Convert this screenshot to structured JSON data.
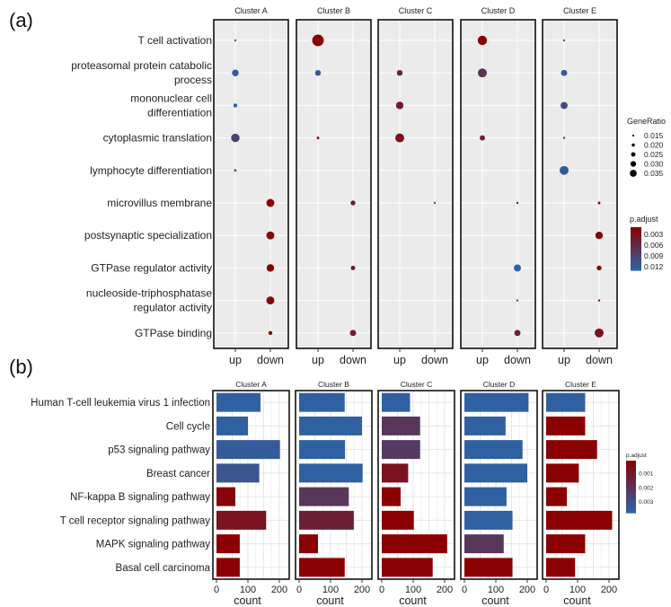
{
  "chart_data": [
    {
      "panel_label": "(a)",
      "type": "scatter",
      "title": "",
      "xlabel": "",
      "ylabel": "",
      "facets": [
        "Cluster A",
        "Cluster B",
        "Cluster C",
        "Cluster D",
        "Cluster E"
      ],
      "x_categories": [
        "up",
        "down"
      ],
      "terms": [
        [
          "T cell activation"
        ],
        [
          "proteasomal protein catabolic",
          "process"
        ],
        [
          "mononuclear cell",
          "differentiation"
        ],
        [
          "cytoplasmic translation"
        ],
        [
          "lymphocyte differentiation"
        ],
        [
          "microvillus membrane"
        ],
        [
          "postsynaptic specialization"
        ],
        [
          "GTPase regulator activity"
        ],
        [
          "nucleoside-triphosphatase",
          "regulator activity"
        ],
        [
          "GTPase binding"
        ]
      ],
      "points": [
        [
          0,
          0,
          0,
          0.012,
          0.013
        ],
        [
          0,
          1,
          0,
          0.022,
          0.012
        ],
        [
          0,
          2,
          0,
          0.016,
          0.013
        ],
        [
          0,
          3,
          0,
          0.026,
          0.009
        ],
        [
          0,
          4,
          0,
          0.013,
          0.013
        ],
        [
          0,
          5,
          1,
          0.025,
          0.001
        ],
        [
          0,
          6,
          1,
          0.025,
          0.002
        ],
        [
          0,
          7,
          1,
          0.024,
          0.001
        ],
        [
          0,
          8,
          1,
          0.025,
          0.002
        ],
        [
          0,
          9,
          1,
          0.016,
          0.001
        ],
        [
          1,
          0,
          0,
          0.033,
          0.001
        ],
        [
          1,
          1,
          0,
          0.02,
          0.012
        ],
        [
          1,
          3,
          0,
          0.013,
          0.002
        ],
        [
          1,
          5,
          1,
          0.018,
          0.004
        ],
        [
          1,
          7,
          1,
          0.017,
          0.004
        ],
        [
          1,
          9,
          1,
          0.021,
          0.004
        ],
        [
          2,
          1,
          0,
          0.02,
          0.005
        ],
        [
          2,
          2,
          0,
          0.024,
          0.004
        ],
        [
          2,
          3,
          0,
          0.027,
          0.003
        ],
        [
          2,
          5,
          1,
          0.012,
          0.013
        ],
        [
          3,
          0,
          0,
          0.028,
          0.001
        ],
        [
          3,
          1,
          0,
          0.027,
          0.007
        ],
        [
          3,
          3,
          0,
          0.019,
          0.005
        ],
        [
          3,
          5,
          1,
          0.012,
          0.004
        ],
        [
          3,
          7,
          1,
          0.023,
          0.013
        ],
        [
          3,
          8,
          1,
          0.012,
          0.012
        ],
        [
          3,
          9,
          1,
          0.021,
          0.005
        ],
        [
          4,
          0,
          0,
          0.012,
          0.013
        ],
        [
          4,
          1,
          0,
          0.021,
          0.012
        ],
        [
          4,
          2,
          0,
          0.023,
          0.01
        ],
        [
          4,
          3,
          0,
          0.012,
          0.009
        ],
        [
          4,
          4,
          0,
          0.027,
          0.012
        ],
        [
          4,
          5,
          1,
          0.013,
          0.002
        ],
        [
          4,
          6,
          1,
          0.024,
          0.002
        ],
        [
          4,
          7,
          1,
          0.018,
          0.002
        ],
        [
          4,
          8,
          1,
          0.012,
          0.002
        ],
        [
          4,
          9,
          1,
          0.027,
          0.003
        ]
      ],
      "legend_size": {
        "title": "GeneRatio",
        "values": [
          0.015,
          0.02,
          0.025,
          0.03,
          0.035
        ],
        "labels": [
          "0.015",
          "0.020",
          "0.025",
          "0.030",
          "0.035"
        ]
      },
      "legend_color": {
        "title": "p.adjust",
        "range": [
          0.001,
          0.013
        ],
        "labels": [
          "0.003",
          "0.006",
          "0.009",
          "0.012"
        ],
        "values": [
          0.003,
          0.006,
          0.009,
          0.012
        ]
      },
      "legend_position": "right",
      "colors": {
        "low": "#8b0000",
        "high": "#2c63a6"
      }
    },
    {
      "panel_label": "(b)",
      "type": "bar",
      "orientation": "horizontal",
      "title": "",
      "xlabel": "count",
      "ylabel": "",
      "facets": [
        "Cluster A",
        "Cluster B",
        "Cluster C",
        "Cluster D",
        "Cluster E"
      ],
      "categories": [
        "Human T-cell leukemia virus 1 infection",
        "Cell cycle",
        "p53 signaling pathway",
        "Breast cancer",
        "NF-kappa B signaling pathway",
        "T cell receptor signaling pathway",
        "MAPK signaling pathway",
        "Basal cell carcinoma"
      ],
      "xticks": [
        0,
        100,
        200
      ],
      "xtick_labels": [
        "0",
        "100",
        "200"
      ],
      "xlim": [
        0,
        220
      ],
      "series": [
        {
          "name": "Cluster A",
          "values": [
            140,
            100,
            202,
            136,
            60,
            158,
            74,
            74
          ],
          "p_adjust": [
            0.0037,
            0.0037,
            0.0035,
            0.0033,
            0.0003,
            0.0008,
            0.0001,
            0.0001
          ]
        },
        {
          "name": "Cluster B",
          "values": [
            145,
            200,
            146,
            202,
            158,
            174,
            60,
            145
          ],
          "p_adjust": [
            0.0037,
            0.0037,
            0.0037,
            0.0037,
            0.0021,
            0.0013,
            0.0001,
            0.0001
          ]
        },
        {
          "name": "Cluster C",
          "values": [
            90,
            122,
            122,
            84,
            60,
            102,
            208,
            162
          ],
          "p_adjust": [
            0.0037,
            0.0021,
            0.0023,
            0.0008,
            0.0001,
            0.0001,
            0.0001,
            0.0001
          ]
        },
        {
          "name": "Cluster D",
          "values": [
            204,
            131,
            185,
            200,
            134,
            153,
            125,
            153
          ],
          "p_adjust": [
            0.0037,
            0.0037,
            0.0037,
            0.0037,
            0.0037,
            0.0037,
            0.0021,
            0.0001
          ]
        },
        {
          "name": "Cluster E",
          "values": [
            124,
            124,
            162,
            104,
            66,
            210,
            124,
            92
          ],
          "p_adjust": [
            0.0037,
            0.0001,
            0.0001,
            0.0001,
            0.0001,
            0.0001,
            0.0001,
            0.0001
          ]
        }
      ],
      "legend_color": {
        "title": "p.adjust",
        "range": [
          0.0001,
          0.0038
        ],
        "labels": [
          "0.001",
          "0.002",
          "0.003"
        ],
        "values": [
          0.001,
          0.002,
          0.003
        ]
      },
      "legend_position": "right",
      "colors": {
        "low": "#8b0000",
        "high": "#2c63a6"
      }
    }
  ]
}
